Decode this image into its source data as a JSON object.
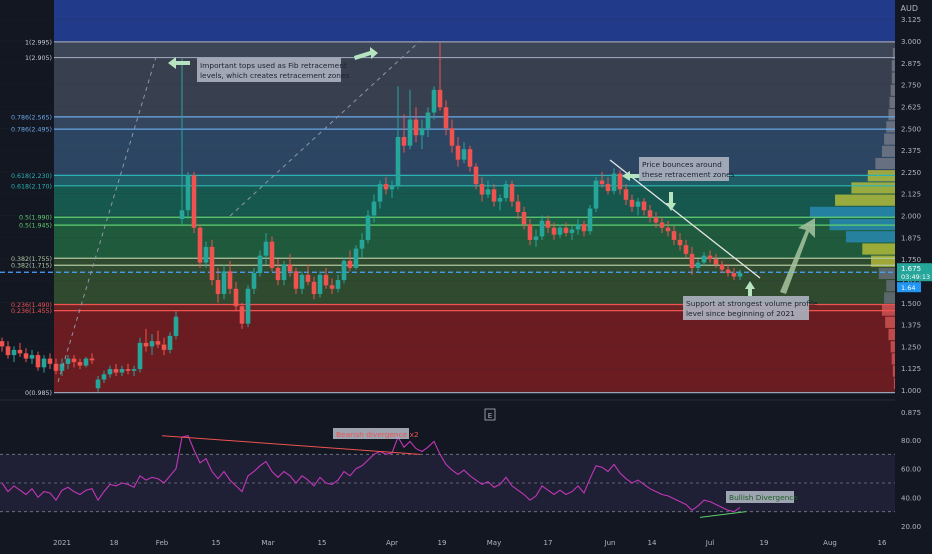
{
  "currency": "AUD",
  "colors": {
    "background": "#131722",
    "grid": "#2a2e39",
    "up": "#26a69a",
    "down": "#ef5350",
    "rsi": "#c237b8",
    "fib_line": "#a8c8e8",
    "current_price_line": "#4aa3ff"
  },
  "chart_data": [
    {
      "type": "candlestick",
      "ylim": [
        0.875,
        3.2
      ],
      "y_ticks": [
        "3.125",
        "3.000",
        "2.875",
        "2.750",
        "2.625",
        "2.500",
        "2.375",
        "2.250",
        "2.125",
        "2.000",
        "1.875",
        "1.750",
        "1.625",
        "1.500",
        "1.375",
        "1.250",
        "1.125",
        "1.000",
        "0.875"
      ],
      "x_ticks": [
        "2021",
        "18",
        "Feb",
        "15",
        "Mar",
        "15",
        "Apr",
        "19",
        "May",
        "17",
        "Jun",
        "14",
        "Jul",
        "19",
        "Aug",
        "16"
      ],
      "fib_levels": [
        {
          "label": "1(2.995)",
          "value": 2.995
        },
        {
          "label": "1(2.905)",
          "value": 2.905
        },
        {
          "label": "0.786(2.565)",
          "value": 2.565
        },
        {
          "label": "0.786(2.495)",
          "value": 2.495
        },
        {
          "label": "0.618(2.230)",
          "value": 2.23
        },
        {
          "label": "0.618(2.170)",
          "value": 2.17
        },
        {
          "label": "0.5(1.990)",
          "value": 1.99
        },
        {
          "label": "0.5(1.945)",
          "value": 1.945
        },
        {
          "label": "0.382(1.755)",
          "value": 1.755
        },
        {
          "label": "0.382(1.715)",
          "value": 1.715
        },
        {
          "label": "0.236(1.490)",
          "value": 1.49
        },
        {
          "label": "0.236(1.455)",
          "value": 1.455
        },
        {
          "label": "0(0.985)",
          "value": 0.985
        }
      ],
      "current_price": {
        "value": 1.675,
        "label": "1.675",
        "countdown": "03:49:13",
        "secondary": "1.64"
      },
      "candles": [
        [
          1.28,
          1.3,
          1.22,
          1.25
        ],
        [
          1.25,
          1.28,
          1.18,
          1.2
        ],
        [
          1.2,
          1.25,
          1.16,
          1.23
        ],
        [
          1.23,
          1.27,
          1.19,
          1.21
        ],
        [
          1.21,
          1.24,
          1.16,
          1.18
        ],
        [
          1.18,
          1.23,
          1.15,
          1.2
        ],
        [
          1.2,
          1.22,
          1.11,
          1.13
        ],
        [
          1.13,
          1.2,
          1.1,
          1.18
        ],
        [
          1.18,
          1.21,
          1.12,
          1.15
        ],
        [
          1.15,
          1.18,
          1.09,
          1.11
        ],
        [
          1.11,
          1.18,
          1.08,
          1.15
        ],
        [
          1.15,
          1.2,
          1.12,
          1.18
        ],
        [
          1.18,
          1.2,
          1.13,
          1.16
        ],
        [
          1.16,
          1.18,
          1.12,
          1.14
        ],
        [
          1.14,
          1.19,
          1.13,
          1.18
        ],
        [
          1.18,
          1.21,
          1.15,
          1.17
        ],
        [
          1.01,
          1.08,
          0.99,
          1.06
        ],
        [
          1.06,
          1.11,
          1.04,
          1.09
        ],
        [
          1.09,
          1.14,
          1.07,
          1.12
        ],
        [
          1.12,
          1.15,
          1.08,
          1.1
        ],
        [
          1.1,
          1.14,
          1.08,
          1.12
        ],
        [
          1.12,
          1.15,
          1.09,
          1.11
        ],
        [
          1.11,
          1.14,
          1.08,
          1.12
        ],
        [
          1.12,
          1.3,
          1.1,
          1.27
        ],
        [
          1.27,
          1.35,
          1.22,
          1.25
        ],
        [
          1.25,
          1.32,
          1.2,
          1.28
        ],
        [
          1.28,
          1.34,
          1.24,
          1.26
        ],
        [
          1.26,
          1.3,
          1.2,
          1.23
        ],
        [
          1.23,
          1.33,
          1.21,
          1.31
        ],
        [
          1.31,
          1.45,
          1.29,
          1.42
        ],
        [
          1.98,
          2.9,
          1.95,
          2.03
        ],
        [
          2.03,
          2.25,
          1.98,
          2.23
        ],
        [
          2.23,
          2.25,
          1.9,
          1.93
        ],
        [
          1.93,
          1.95,
          1.7,
          1.73
        ],
        [
          1.73,
          1.85,
          1.7,
          1.82
        ],
        [
          1.82,
          1.86,
          1.6,
          1.63
        ],
        [
          1.63,
          1.7,
          1.5,
          1.55
        ],
        [
          1.55,
          1.72,
          1.52,
          1.68
        ],
        [
          1.68,
          1.74,
          1.55,
          1.58
        ],
        [
          1.58,
          1.62,
          1.45,
          1.48
        ],
        [
          1.48,
          1.5,
          1.35,
          1.38
        ],
        [
          1.38,
          1.6,
          1.36,
          1.58
        ],
        [
          1.58,
          1.7,
          1.55,
          1.67
        ],
        [
          1.67,
          1.8,
          1.65,
          1.77
        ],
        [
          1.77,
          1.9,
          1.72,
          1.85
        ],
        [
          1.85,
          1.88,
          1.68,
          1.7
        ],
        [
          1.7,
          1.75,
          1.6,
          1.63
        ],
        [
          1.63,
          1.74,
          1.6,
          1.72
        ],
        [
          1.72,
          1.78,
          1.65,
          1.68
        ],
        [
          1.68,
          1.7,
          1.55,
          1.58
        ],
        [
          1.58,
          1.68,
          1.55,
          1.66
        ],
        [
          1.66,
          1.72,
          1.6,
          1.62
        ],
        [
          1.62,
          1.65,
          1.52,
          1.55
        ],
        [
          1.55,
          1.68,
          1.53,
          1.66
        ],
        [
          1.66,
          1.7,
          1.58,
          1.6
        ],
        [
          1.6,
          1.64,
          1.55,
          1.58
        ],
        [
          1.58,
          1.66,
          1.56,
          1.63
        ],
        [
          1.63,
          1.76,
          1.61,
          1.74
        ],
        [
          1.74,
          1.8,
          1.68,
          1.7
        ],
        [
          1.7,
          1.83,
          1.69,
          1.81
        ],
        [
          1.81,
          1.9,
          1.76,
          1.86
        ],
        [
          1.86,
          2.03,
          1.84,
          2.0
        ],
        [
          2.0,
          2.12,
          1.96,
          2.08
        ],
        [
          2.08,
          2.2,
          2.04,
          2.18
        ],
        [
          2.18,
          2.22,
          2.12,
          2.15
        ],
        [
          2.15,
          2.2,
          2.1,
          2.17
        ],
        [
          2.17,
          2.74,
          2.15,
          2.45
        ],
        [
          2.45,
          2.58,
          2.36,
          2.4
        ],
        [
          2.4,
          2.72,
          2.38,
          2.55
        ],
        [
          2.55,
          2.62,
          2.42,
          2.46
        ],
        [
          2.46,
          2.55,
          2.38,
          2.5
        ],
        [
          2.5,
          2.62,
          2.45,
          2.59
        ],
        [
          2.59,
          2.74,
          2.55,
          2.72
        ],
        [
          2.72,
          2.99,
          2.6,
          2.62
        ],
        [
          2.62,
          2.66,
          2.46,
          2.5
        ],
        [
          2.5,
          2.55,
          2.36,
          2.4
        ],
        [
          2.4,
          2.45,
          2.28,
          2.32
        ],
        [
          2.32,
          2.42,
          2.3,
          2.38
        ],
        [
          2.38,
          2.4,
          2.25,
          2.28
        ],
        [
          2.28,
          2.3,
          2.15,
          2.18
        ],
        [
          2.18,
          2.22,
          2.08,
          2.12
        ],
        [
          2.12,
          2.2,
          2.1,
          2.15
        ],
        [
          2.15,
          2.18,
          2.05,
          2.08
        ],
        [
          2.08,
          2.12,
          2.03,
          2.1
        ],
        [
          2.1,
          2.2,
          2.08,
          2.18
        ],
        [
          2.18,
          2.2,
          2.05,
          2.08
        ],
        [
          2.08,
          2.12,
          1.98,
          2.02
        ],
        [
          2.02,
          2.05,
          1.92,
          1.95
        ],
        [
          1.95,
          1.98,
          1.83,
          1.86
        ],
        [
          1.86,
          1.92,
          1.82,
          1.88
        ],
        [
          1.88,
          2.0,
          1.86,
          1.97
        ],
        [
          1.97,
          2.0,
          1.9,
          1.93
        ],
        [
          1.93,
          1.96,
          1.86,
          1.89
        ],
        [
          1.89,
          1.95,
          1.87,
          1.93
        ],
        [
          1.93,
          1.96,
          1.88,
          1.9
        ],
        [
          1.9,
          1.94,
          1.86,
          1.92
        ],
        [
          1.92,
          1.98,
          1.89,
          1.95
        ],
        [
          1.95,
          1.97,
          1.88,
          1.91
        ],
        [
          1.91,
          2.06,
          1.89,
          2.04
        ],
        [
          2.04,
          2.22,
          2.02,
          2.2
        ],
        [
          2.2,
          2.25,
          2.16,
          2.18
        ],
        [
          2.18,
          2.22,
          2.12,
          2.14
        ],
        [
          2.14,
          2.27,
          2.12,
          2.24
        ],
        [
          2.24,
          2.26,
          2.12,
          2.15
        ],
        [
          2.15,
          2.18,
          2.06,
          2.09
        ],
        [
          2.09,
          2.12,
          2.02,
          2.05
        ],
        [
          2.05,
          2.1,
          2.0,
          2.08
        ],
        [
          2.08,
          2.1,
          2.0,
          2.03
        ],
        [
          2.03,
          2.06,
          1.96,
          1.99
        ],
        [
          1.99,
          2.02,
          1.93,
          1.96
        ],
        [
          1.96,
          1.99,
          1.9,
          1.93
        ],
        [
          1.93,
          1.97,
          1.88,
          1.91
        ],
        [
          1.91,
          1.94,
          1.83,
          1.86
        ],
        [
          1.86,
          1.9,
          1.8,
          1.83
        ],
        [
          1.83,
          1.86,
          1.76,
          1.78
        ],
        [
          1.78,
          1.82,
          1.66,
          1.7
        ],
        [
          1.7,
          1.75,
          1.68,
          1.73
        ],
        [
          1.73,
          1.79,
          1.71,
          1.77
        ],
        [
          1.77,
          1.8,
          1.73,
          1.75
        ],
        [
          1.75,
          1.78,
          1.7,
          1.72
        ],
        [
          1.72,
          1.74,
          1.67,
          1.69
        ],
        [
          1.69,
          1.72,
          1.65,
          1.67
        ],
        [
          1.67,
          1.7,
          1.63,
          1.65
        ],
        [
          1.65,
          1.69,
          1.63,
          1.67
        ]
      ],
      "annotations": [
        {
          "text": "Important tops used as Fib retracement levels, which creates retracement zones",
          "lines": [
            "Important tops used as Fib retracement",
            "levels, which creates retracement zones"
          ]
        },
        {
          "text": "Price bounces around these retracement zones",
          "lines": [
            "Price bounces around",
            "these retracement zones"
          ]
        },
        {
          "text": "Support at strongest volume profile level since beginning of 2021",
          "lines": [
            "Support at strongest volume profile",
            "level since beginning of 2021"
          ]
        }
      ],
      "volume_profile": [
        1,
        2,
        3,
        4,
        6,
        9,
        12,
        10,
        8,
        15,
        22,
        30,
        45,
        60,
        78,
        55,
        40,
        25,
        18,
        12,
        10,
        8,
        6,
        5,
        4,
        3,
        3,
        2
      ],
      "volume_profile_bins": [
        1.0,
        1.07,
        1.14,
        1.21,
        1.28,
        1.35,
        1.42,
        1.49,
        1.56,
        1.63,
        1.7,
        1.77,
        1.84,
        1.91,
        1.98,
        2.05,
        2.12,
        2.19,
        2.26,
        2.33,
        2.4,
        2.47,
        2.54,
        2.61,
        2.68,
        2.75,
        2.82,
        2.89
      ]
    },
    {
      "type": "line",
      "name": "RSI",
      "ylim": [
        20,
        90
      ],
      "y_ticks": [
        "80.00",
        "60.00",
        "40.00",
        "20.00"
      ],
      "levels": [
        70,
        50,
        30
      ],
      "values": [
        50,
        44,
        48,
        45,
        42,
        46,
        40,
        44,
        43,
        38,
        45,
        47,
        44,
        42,
        45,
        46,
        38,
        44,
        49,
        48,
        50,
        49,
        47,
        55,
        52,
        54,
        53,
        50,
        55,
        60,
        82,
        83,
        73,
        64,
        67,
        58,
        53,
        58,
        52,
        48,
        44,
        55,
        58,
        62,
        65,
        58,
        54,
        58,
        55,
        50,
        55,
        52,
        48,
        54,
        50,
        49,
        52,
        58,
        55,
        60,
        62,
        66,
        70,
        72,
        70,
        71,
        82,
        75,
        79,
        74,
        72,
        75,
        79,
        70,
        63,
        59,
        56,
        59,
        55,
        52,
        49,
        51,
        47,
        49,
        54,
        48,
        45,
        42,
        38,
        41,
        48,
        45,
        42,
        45,
        42,
        44,
        48,
        43,
        53,
        62,
        61,
        58,
        63,
        57,
        53,
        50,
        52,
        49,
        46,
        44,
        42,
        41,
        39,
        37,
        35,
        31,
        34,
        38,
        37,
        35,
        33,
        31,
        30,
        33
      ],
      "annotations": [
        {
          "text": "Bearish divergence x2"
        },
        {
          "text": "Bullish Divergence"
        }
      ]
    }
  ]
}
